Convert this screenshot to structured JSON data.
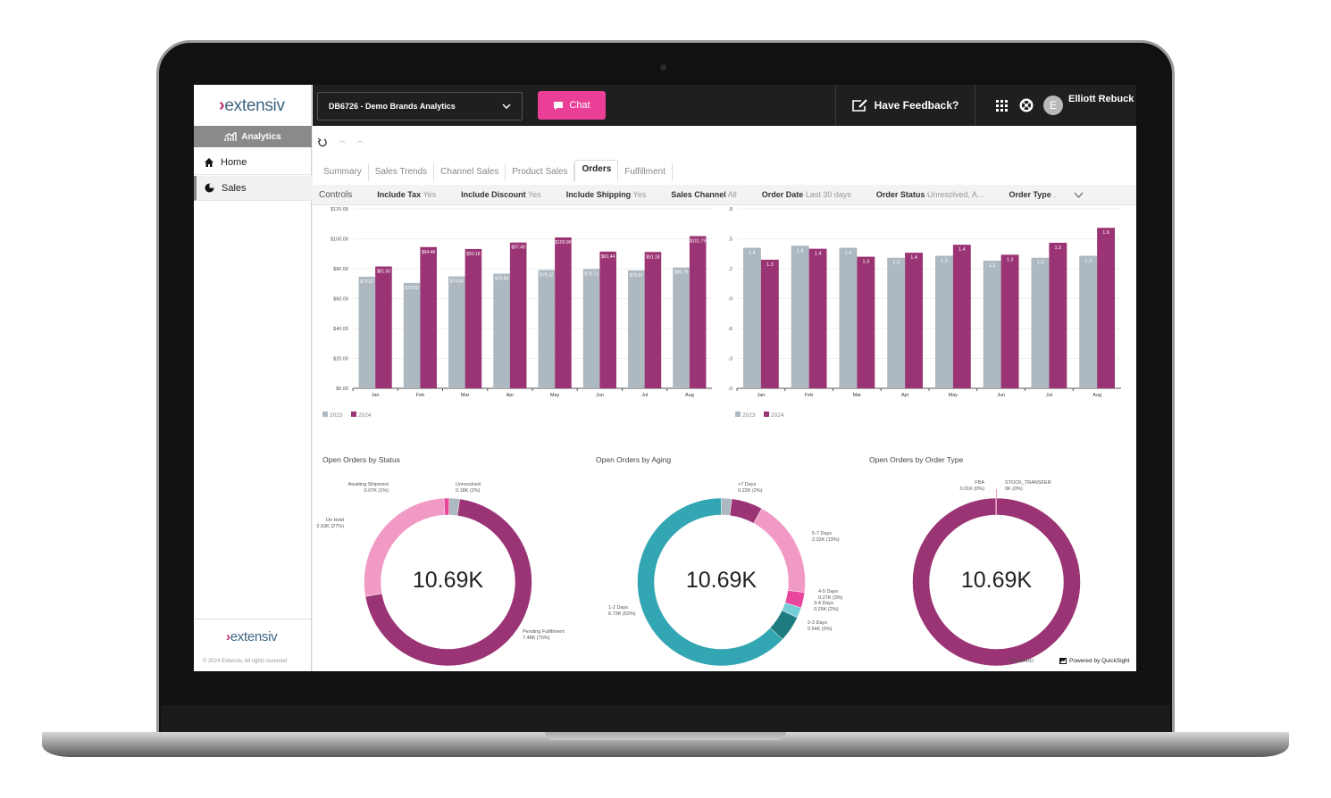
{
  "brand": {
    "logo": "extensiv",
    "copyright": "© 2024 Extensiv, All rights reserved"
  },
  "sidebar": {
    "section": "Analytics",
    "items": [
      {
        "label": "Home",
        "icon": "home-icon"
      },
      {
        "label": "Sales",
        "icon": "pie-chart-icon",
        "active": true
      }
    ]
  },
  "topbar": {
    "dashboard_select": "DB6726 - Demo Brands Analytics",
    "chat_label": "Chat",
    "feedback_label": "Have Feedback?",
    "user_initial": "E",
    "user_name": "Elliott Rebuck",
    "accent": "#ea3f97"
  },
  "tabs": [
    {
      "label": "Summary"
    },
    {
      "label": "Sales Trends"
    },
    {
      "label": "Channel Sales"
    },
    {
      "label": "Product Sales"
    },
    {
      "label": "Orders",
      "active": true
    },
    {
      "label": "Fulfillment"
    }
  ],
  "controls": {
    "label": "Controls",
    "items": [
      {
        "name": "Include Tax",
        "value": "Yes"
      },
      {
        "name": "Include Discount",
        "value": "Yes"
      },
      {
        "name": "Include Shipping",
        "value": "Yes"
      },
      {
        "name": "Sales Channel",
        "value": "All"
      },
      {
        "name": "Order Date",
        "value": "Last 30 days"
      },
      {
        "name": "Order Status",
        "value": "Unresolved, A..."
      },
      {
        "name": "Order Type",
        "value": "."
      }
    ]
  },
  "powered_by": "Powered by QuickSight",
  "chart_data": [
    {
      "type": "bar",
      "categories": [
        "Jan",
        "Feb",
        "Mar",
        "Apr",
        "May",
        "Jun",
        "Jul",
        "Aug"
      ],
      "ylim": [
        0,
        120
      ],
      "yticks": [
        "$0.00",
        "$20.00",
        "$40.00",
        "$60.00",
        "$80.00",
        "$100.00",
        "$120.00"
      ],
      "ytick_values": [
        0,
        20,
        40,
        60,
        80,
        100,
        120
      ],
      "grid": true,
      "legend": "bottom-left",
      "format": "currency",
      "series": [
        {
          "name": "2023",
          "color": "#adb8c1",
          "values": [
            74.57,
            70.5,
            74.84,
            76.66,
            79.12,
            79.73,
            78.87,
            80.79
          ]
        },
        {
          "name": "2024",
          "color": "#9b3474",
          "values": [
            81.5,
            94.46,
            93.18,
            97.49,
            100.9,
            91.44,
            91.18,
            101.79
          ]
        }
      ]
    },
    {
      "type": "bar",
      "categories": [
        "Jan",
        "Feb",
        "Mar",
        "Apr",
        "May",
        "Jun",
        "Jul",
        "Aug"
      ],
      "ylim": [
        0,
        1.8
      ],
      "yticks": [
        "0.0",
        "0.3",
        "0.6",
        "0.9",
        "1.2",
        "1.5",
        "1.8"
      ],
      "ytick_values": [
        0,
        0.3,
        0.6,
        0.9,
        1.2,
        1.5,
        1.8
      ],
      "grid": true,
      "legend": "bottom-left",
      "format": "decimal1",
      "series": [
        {
          "name": "2023",
          "color": "#adb8c1",
          "values": [
            1.41,
            1.43,
            1.41,
            1.31,
            1.33,
            1.28,
            1.31,
            1.33
          ]
        },
        {
          "name": "2024",
          "color": "#9b3474",
          "values": [
            1.29,
            1.4,
            1.32,
            1.36,
            1.44,
            1.34,
            1.46,
            1.61
          ]
        }
      ]
    },
    {
      "type": "pie",
      "title": "Open Orders by Status",
      "center_label": "10.69K",
      "slices": [
        {
          "label": "Unresolved",
          "value_text": "0.18K (2%)",
          "pct": 2,
          "color": "#adb8c1"
        },
        {
          "label": "Pending Fulfillment",
          "value_text": "7.48K (70%)",
          "pct": 70,
          "color": "#9b3474"
        },
        {
          "label": "On Hold",
          "value_text": "2.93K (27%)",
          "pct": 27,
          "color": "#f19ac6"
        },
        {
          "label": "Awaiting Shipment",
          "value_text": "0.07K (1%)",
          "pct": 1,
          "color": "#e8479b"
        }
      ]
    },
    {
      "type": "pie",
      "title": "Open Orders by Aging",
      "center_label": "10.69K",
      "slices": [
        {
          "label": ">7 Days",
          "value_text": "0.22K (2%)",
          "pct": 2,
          "color": "#adb8c1"
        },
        {
          "label": "",
          "value_text": "",
          "pct": 6,
          "color": "#9b3474"
        },
        {
          "label": "5-7 Days",
          "value_text": "2.02K (19%)",
          "pct": 19,
          "color": "#f19ac6"
        },
        {
          "label": "4-5 Days",
          "value_text": "0.27K (3%)",
          "pct": 3,
          "color": "#e8479b"
        },
        {
          "label": "3-4 Days",
          "value_text": "0.25K (2%)",
          "pct": 2,
          "color": "#76cdd6"
        },
        {
          "label": "2-3 Days",
          "value_text": "0.54K (5%)",
          "pct": 5,
          "color": "#1e7b7f"
        },
        {
          "label": "1-2 Days",
          "value_text": "6.73K (63%)",
          "pct": 63,
          "color": "#33a6b3"
        }
      ]
    },
    {
      "type": "pie",
      "title": "Open Orders by Order Type",
      "center_label": "10.69K",
      "slices": [
        {
          "label": "STOCK_TRANSFER",
          "value_text": "0K (0%)",
          "pct": 0,
          "color": "#e8479b"
        },
        {
          "label": "STANDARD",
          "value_text": "",
          "pct": 99.9,
          "color": "#9b3474"
        },
        {
          "label": "FBA",
          "value_text": "0.01K (0%)",
          "pct": 0.1,
          "color": "#f19ac6"
        }
      ]
    }
  ]
}
